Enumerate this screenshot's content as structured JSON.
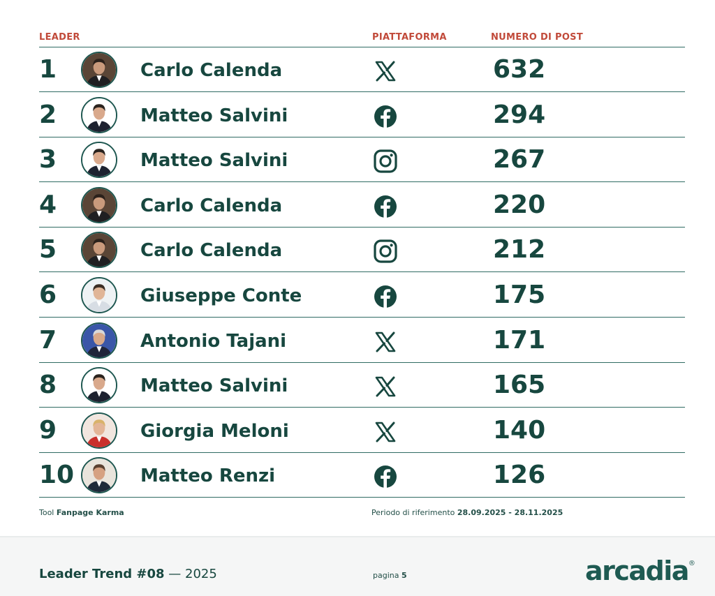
{
  "table": {
    "headers": {
      "leader": "LEADER",
      "platform": "PIATTAFORMA",
      "posts": "NUMERO DI POST"
    },
    "rows": [
      {
        "rank": "1",
        "name": "Carlo Calenda",
        "platform": "x-icon",
        "posts": "632"
      },
      {
        "rank": "2",
        "name": "Matteo Salvini",
        "platform": "facebook-icon",
        "posts": "294"
      },
      {
        "rank": "3",
        "name": "Matteo Salvini",
        "platform": "instagram-icon",
        "posts": "267"
      },
      {
        "rank": "4",
        "name": "Carlo Calenda",
        "platform": "facebook-icon",
        "posts": "220"
      },
      {
        "rank": "5",
        "name": "Carlo Calenda",
        "platform": "instagram-icon",
        "posts": "212"
      },
      {
        "rank": "6",
        "name": "Giuseppe Conte",
        "platform": "facebook-icon",
        "posts": "175"
      },
      {
        "rank": "7",
        "name": "Antonio Tajani",
        "platform": "x-icon",
        "posts": "171"
      },
      {
        "rank": "8",
        "name": "Matteo Salvini",
        "platform": "x-icon",
        "posts": "165"
      },
      {
        "rank": "9",
        "name": "Giorgia Meloni",
        "platform": "x-icon",
        "posts": "140"
      },
      {
        "rank": "10",
        "name": "Matteo Renzi",
        "platform": "facebook-icon",
        "posts": "126"
      }
    ]
  },
  "source": {
    "prefix": "Tool ",
    "tool": "Fanpage Karma"
  },
  "period": {
    "prefix": "Periodo di riferimento ",
    "range": "28.09.2025 - 28.11.2025"
  },
  "footer": {
    "series": "Leader Trend #08",
    "dash": " — ",
    "year": "2025",
    "page_prefix": "pagina ",
    "page_number": "5",
    "logo": "arcadia",
    "logo_mark": "®"
  },
  "colors": {
    "accent": "#c14a3a",
    "primary": "#17473f",
    "rule": "#2f6b63"
  }
}
